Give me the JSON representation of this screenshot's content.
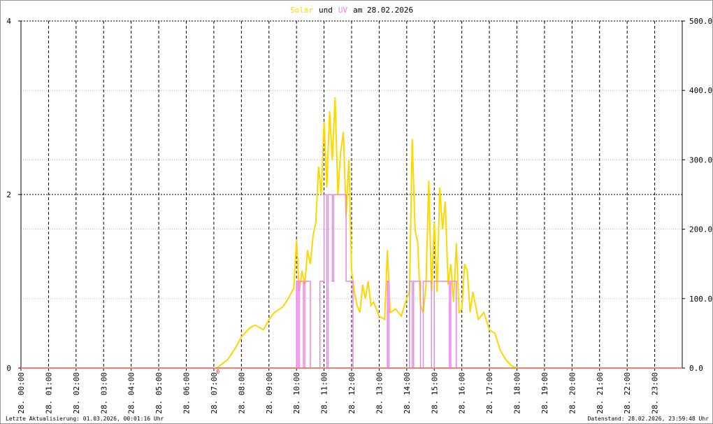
{
  "chart_data": {
    "type": "line",
    "title": {
      "joiner": "und",
      "suffix": "am 28.02.2026"
    },
    "xlim": [
      0,
      24
    ],
    "xticks": [
      {
        "value": 0,
        "label": "28. 00:00"
      },
      {
        "value": 1,
        "label": "28. 01:00"
      },
      {
        "value": 2,
        "label": "28. 02:00"
      },
      {
        "value": 3,
        "label": "28. 03:00"
      },
      {
        "value": 4,
        "label": "28. 04:00"
      },
      {
        "value": 5,
        "label": "28. 05:00"
      },
      {
        "value": 6,
        "label": "28. 06:00"
      },
      {
        "value": 7,
        "label": "28. 07:00"
      },
      {
        "value": 8,
        "label": "28. 08:00"
      },
      {
        "value": 9,
        "label": "28. 09:00"
      },
      {
        "value": 10,
        "label": "28. 10:00"
      },
      {
        "value": 11,
        "label": "28. 11:00"
      },
      {
        "value": 12,
        "label": "28. 12:00"
      },
      {
        "value": 13,
        "label": "28. 13:00"
      },
      {
        "value": 14,
        "label": "28. 14:00"
      },
      {
        "value": 15,
        "label": "28. 15:00"
      },
      {
        "value": 16,
        "label": "28. 16:00"
      },
      {
        "value": 17,
        "label": "28. 17:00"
      },
      {
        "value": 18,
        "label": "28. 18:00"
      },
      {
        "value": 19,
        "label": "28. 19:00"
      },
      {
        "value": 20,
        "label": "28. 20:00"
      },
      {
        "value": 21,
        "label": "28. 21:00"
      },
      {
        "value": 22,
        "label": "28. 22:00"
      },
      {
        "value": 23,
        "label": "28. 23:00"
      }
    ],
    "ylim": [
      0,
      4
    ],
    "yticks": [
      0,
      2,
      4
    ],
    "y2lim": [
      0,
      500
    ],
    "y2ticks": [
      {
        "value": 0,
        "label": "0.0"
      },
      {
        "value": 100,
        "label": "100.0"
      },
      {
        "value": 200,
        "label": "200.0"
      },
      {
        "value": 300,
        "label": "300.0"
      },
      {
        "value": 400,
        "label": "400.0"
      },
      {
        "value": 500,
        "label": "500.0"
      }
    ],
    "grid": true,
    "series": [
      {
        "name": "Solar",
        "color": "#ffd700",
        "axis": "y2",
        "x": [
          0,
          7.1,
          7.5,
          7.8,
          8.0,
          8.3,
          8.5,
          8.8,
          9.0,
          9.2,
          9.5,
          9.7,
          9.9,
          10.0,
          10.1,
          10.2,
          10.3,
          10.4,
          10.5,
          10.6,
          10.7,
          10.8,
          10.9,
          11.0,
          11.1,
          11.2,
          11.3,
          11.4,
          11.5,
          11.6,
          11.7,
          11.8,
          11.9,
          12.0,
          12.1,
          12.2,
          12.3,
          12.4,
          12.5,
          12.6,
          12.7,
          12.8,
          13.0,
          13.2,
          13.3,
          13.4,
          13.6,
          13.8,
          14.0,
          14.1,
          14.2,
          14.3,
          14.4,
          14.5,
          14.6,
          14.7,
          14.8,
          14.9,
          15.0,
          15.1,
          15.2,
          15.3,
          15.4,
          15.5,
          15.6,
          15.7,
          15.8,
          15.9,
          16.0,
          16.1,
          16.2,
          16.3,
          16.4,
          16.6,
          16.8,
          17.0,
          17.2,
          17.4,
          17.6,
          17.8,
          18.0,
          24
        ],
        "values": [
          0,
          0,
          12,
          30,
          45,
          58,
          62,
          55,
          70,
          80,
          88,
          100,
          115,
          185,
          110,
          140,
          120,
          170,
          150,
          190,
          210,
          290,
          250,
          355,
          260,
          370,
          300,
          390,
          250,
          310,
          340,
          220,
          300,
          140,
          110,
          90,
          80,
          120,
          100,
          125,
          90,
          95,
          75,
          70,
          170,
          80,
          85,
          75,
          100,
          110,
          330,
          200,
          180,
          90,
          80,
          120,
          270,
          110,
          210,
          110,
          260,
          200,
          240,
          120,
          150,
          95,
          180,
          80,
          85,
          150,
          140,
          80,
          110,
          70,
          80,
          55,
          50,
          25,
          12,
          3,
          0,
          0
        ]
      },
      {
        "name": "UV",
        "color": "#ee82ee",
        "axis": "y",
        "x": [
          0,
          10,
          10,
          10.05,
          10.05,
          10.1,
          10.1,
          10.25,
          10.25,
          10.3,
          10.3,
          10.5,
          10.5,
          10.85,
          10.85,
          11.0,
          11.0,
          11.1,
          11.1,
          11.15,
          11.15,
          11.3,
          11.3,
          11.35,
          11.35,
          11.8,
          11.8,
          12.05,
          12.05,
          13.3,
          13.3,
          13.35,
          13.35,
          14.1,
          14.1,
          14.2,
          14.2,
          14.25,
          14.25,
          14.5,
          14.5,
          14.6,
          14.6,
          14.9,
          14.9,
          15.0,
          15.0,
          15.55,
          15.55,
          15.6,
          15.6,
          15.8,
          15.8,
          24
        ],
        "values": [
          0,
          0,
          1,
          1,
          0,
          0,
          1,
          1,
          0,
          0,
          1,
          1,
          0,
          0,
          1,
          1,
          2,
          2,
          0,
          0,
          2,
          2,
          1,
          1,
          2,
          2,
          1,
          1,
          0,
          0,
          1,
          1,
          0,
          0,
          1,
          1,
          0,
          0,
          1,
          1,
          0,
          0,
          1,
          1,
          0,
          0,
          1,
          1,
          0,
          0,
          1,
          1,
          0,
          0
        ]
      }
    ],
    "annotations": [
      {
        "x": 7.15,
        "text": "0"
      }
    ],
    "footer_left": "Letzte Aktualisierung: 01.03.2026, 00:01:16 Uhr",
    "footer_right": "Datenstand: 28.02.2026, 23:59:48 Uhr"
  }
}
